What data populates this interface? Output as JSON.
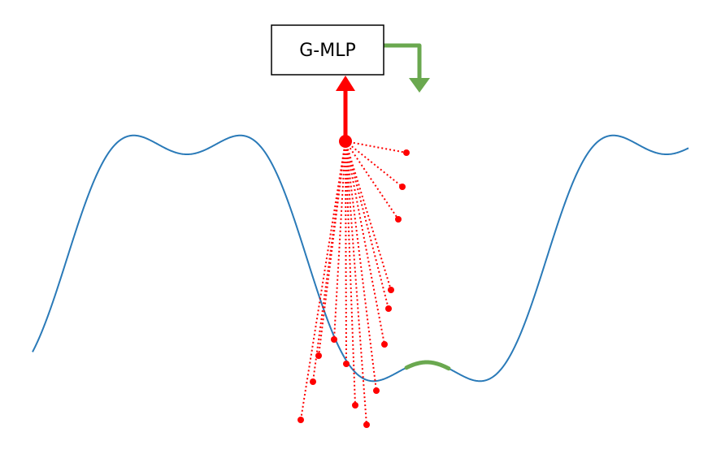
{
  "box": {
    "label": "G-MLP"
  },
  "colors": {
    "curve": "#2a7ab8",
    "samples": "#ff0000",
    "highlight": "#6aa84f",
    "box_stroke": "#000000"
  }
}
